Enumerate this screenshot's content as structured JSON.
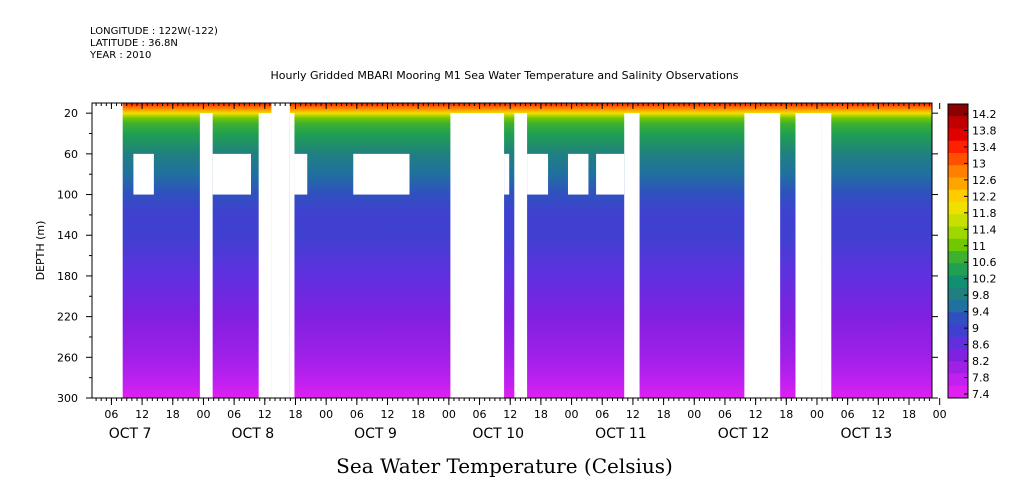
{
  "header": {
    "longitude": "LONGITUDE : 122W(-122)",
    "latitude": "LATITUDE : 36.8N",
    "year": "YEAR : 2010"
  },
  "chart_data": {
    "type": "heatmap",
    "title": "Hourly Gridded MBARI Mooring M1 Sea Water Temperature and Salinity Observations",
    "xlabel": "Sea Water Temperature (Celsius)",
    "ylabel": "DEPTH (m)",
    "x_hour_ticks": [
      "06",
      "12",
      "18",
      "00",
      "06",
      "12",
      "18",
      "00",
      "06",
      "12",
      "18",
      "00",
      "06",
      "12",
      "18",
      "00",
      "06",
      "12",
      "18",
      "00",
      "06",
      "12",
      "18",
      "00",
      "06",
      "12",
      "18",
      "00"
    ],
    "day_labels": [
      "OCT  7",
      "OCT  8",
      "OCT  9",
      "OCT 10",
      "OCT 11",
      "OCT 12",
      "OCT 13"
    ],
    "x_range_hours_since_oct7_00": [
      2.2,
      166.5
    ],
    "y_ticks": [
      20,
      60,
      100,
      140,
      180,
      220,
      260,
      300
    ],
    "ylim": [
      300,
      10
    ],
    "colorbar": {
      "labels": [
        "14.2",
        "13.8",
        "13.4",
        "13",
        "12.6",
        "12.2",
        "11.8",
        "11.4",
        "11",
        "10.6",
        "10.2",
        "9.8",
        "9.4",
        "9",
        "8.6",
        "8.2",
        "7.8",
        "7.4"
      ],
      "colors": [
        "#8b0000",
        "#c00000",
        "#e00000",
        "#ff2000",
        "#ff5000",
        "#ff8000",
        "#ffa500",
        "#ffcc00",
        "#f0e000",
        "#c8e000",
        "#9ed800",
        "#70c800",
        "#40b030",
        "#20a050",
        "#109070",
        "#208080",
        "#2070a0",
        "#3050c0",
        "#4040d0",
        "#6030e0",
        "#8020e0",
        "#a020e8",
        "#c020f0",
        "#e020f0"
      ]
    },
    "depth_profile": [
      {
        "depth": 10,
        "temp": 13.6
      },
      {
        "depth": 15,
        "temp": 13.0
      },
      {
        "depth": 20,
        "temp": 12.0
      },
      {
        "depth": 25,
        "temp": 11.2
      },
      {
        "depth": 30,
        "temp": 10.8
      },
      {
        "depth": 40,
        "temp": 10.5
      },
      {
        "depth": 60,
        "temp": 10.1
      },
      {
        "depth": 80,
        "temp": 9.8
      },
      {
        "depth": 100,
        "temp": 9.5
      },
      {
        "depth": 120,
        "temp": 9.2
      },
      {
        "depth": 140,
        "temp": 9.0
      },
      {
        "depth": 180,
        "temp": 8.8
      },
      {
        "depth": 220,
        "temp": 8.5
      },
      {
        "depth": 260,
        "temp": 8.1
      },
      {
        "depth": 285,
        "temp": 7.9
      },
      {
        "depth": 300,
        "temp": 7.7
      }
    ],
    "missing_regions": [
      {
        "t0": 2.2,
        "t1": 8.2,
        "d0": 10,
        "d1": 300
      },
      {
        "t0": 10.3,
        "t1": 14.3,
        "d0": 60,
        "d1": 100
      },
      {
        "t0": 23.3,
        "t1": 25.8,
        "d0": 20,
        "d1": 300
      },
      {
        "t0": 25.8,
        "t1": 33.3,
        "d0": 60,
        "d1": 100
      },
      {
        "t0": 34.8,
        "t1": 37.3,
        "d0": 20,
        "d1": 300
      },
      {
        "t0": 37.3,
        "t1": 40.9,
        "d0": 10,
        "d1": 300
      },
      {
        "t0": 40.9,
        "t1": 41.8,
        "d0": 20,
        "d1": 300
      },
      {
        "t0": 41.8,
        "t1": 44.3,
        "d0": 60,
        "d1": 100
      },
      {
        "t0": 53.3,
        "t1": 64.3,
        "d0": 60,
        "d1": 100
      },
      {
        "t0": 72.3,
        "t1": 82.8,
        "d0": 20,
        "d1": 300
      },
      {
        "t0": 82.8,
        "t1": 83.8,
        "d0": 60,
        "d1": 100
      },
      {
        "t0": 84.8,
        "t1": 87.3,
        "d0": 20,
        "d1": 300
      },
      {
        "t0": 87.3,
        "t1": 91.4,
        "d0": 60,
        "d1": 100
      },
      {
        "t0": 95.3,
        "t1": 99.3,
        "d0": 60,
        "d1": 100
      },
      {
        "t0": 100.8,
        "t1": 106.3,
        "d0": 60,
        "d1": 100
      },
      {
        "t0": 106.3,
        "t1": 109.3,
        "d0": 20,
        "d1": 300
      },
      {
        "t0": 129.8,
        "t1": 136.8,
        "d0": 20,
        "d1": 300
      },
      {
        "t0": 139.8,
        "t1": 144.8,
        "d0": 20,
        "d1": 300
      },
      {
        "t0": 144.8,
        "t1": 146.8,
        "d0": 20,
        "d1": 300
      }
    ]
  }
}
